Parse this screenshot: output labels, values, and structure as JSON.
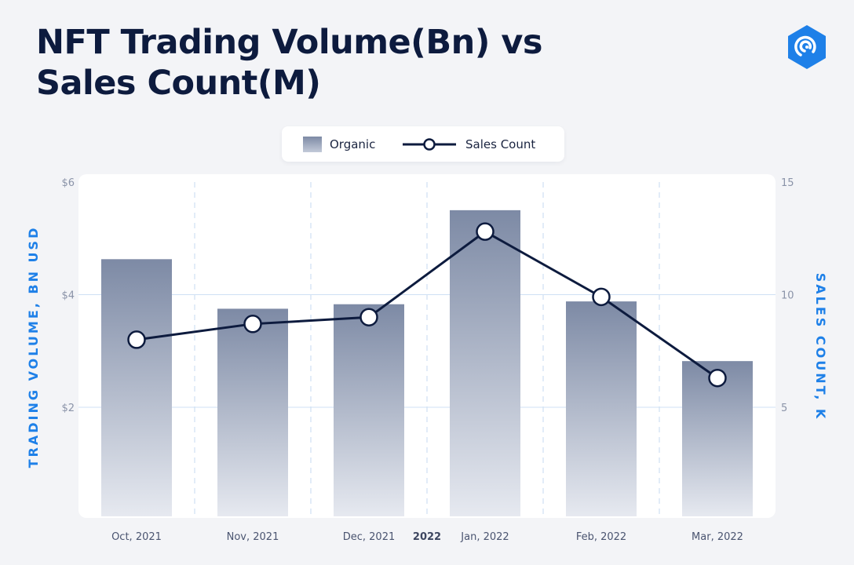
{
  "title": {
    "line1": "NFT Trading Volume(Bn) vs",
    "line2": "Sales Count(M)"
  },
  "legend": {
    "organic": "Organic",
    "sales_count": "Sales Count"
  },
  "colors": {
    "bar_top": "#7d8aa5",
    "bar_bottom": "#e6e9f0",
    "line": "#0d1b3e",
    "axis_title": "#1e80e8",
    "logo": "#1e80e8",
    "grid": "#cfe0f4"
  },
  "logo_icon": "dappradar-logo-icon",
  "chart_data": {
    "type": "bar",
    "categories": [
      "Oct, 2021",
      "Nov, 2021",
      "Dec, 2021",
      "Jan, 2022",
      "Feb, 2022",
      "Mar, 2022"
    ],
    "year_marker": "2022",
    "series": [
      {
        "name": "Organic",
        "type": "bar",
        "axis": "left",
        "values": [
          4.63,
          3.75,
          3.83,
          5.5,
          3.88,
          2.82
        ]
      },
      {
        "name": "Sales Count",
        "type": "line",
        "axis": "right",
        "values": [
          8.0,
          8.7,
          9.0,
          12.8,
          9.9,
          6.3
        ]
      }
    ],
    "y_left": {
      "label": "TRADING VOLUME, BN USD",
      "ticks": [
        "$2",
        "$4",
        "$6"
      ],
      "tick_values": [
        2,
        4,
        6
      ]
    },
    "y_right": {
      "label": "SALES COUNT, K",
      "ticks": [
        "5",
        "10",
        "15"
      ],
      "tick_values": [
        5,
        10,
        15
      ]
    },
    "grid": true,
    "legend_position": "top-center"
  }
}
